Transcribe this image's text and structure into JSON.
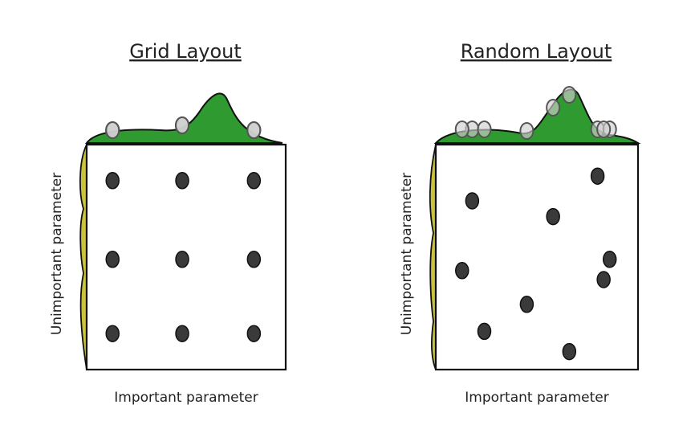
{
  "colors": {
    "important_density": "#2f9a2f",
    "unimportant_density": "#c9c23c",
    "point": "#3a3a3a",
    "projection": "#d0d0d0"
  },
  "panels": [
    {
      "title": "Grid Layout",
      "x_label": "Important parameter",
      "y_label": "Unimportant parameter",
      "points": [
        [
          0.13,
          0.16
        ],
        [
          0.48,
          0.16
        ],
        [
          0.84,
          0.16
        ],
        [
          0.13,
          0.51
        ],
        [
          0.48,
          0.51
        ],
        [
          0.84,
          0.51
        ],
        [
          0.13,
          0.84
        ],
        [
          0.48,
          0.84
        ],
        [
          0.84,
          0.84
        ]
      ]
    },
    {
      "title": "Random Layout",
      "x_label": "Important parameter",
      "y_label": "Unimportant parameter",
      "points": [
        [
          0.8,
          0.14
        ],
        [
          0.18,
          0.25
        ],
        [
          0.58,
          0.32
        ],
        [
          0.86,
          0.51
        ],
        [
          0.13,
          0.56
        ],
        [
          0.83,
          0.6
        ],
        [
          0.45,
          0.71
        ],
        [
          0.24,
          0.83
        ],
        [
          0.66,
          0.92
        ]
      ]
    }
  ]
}
